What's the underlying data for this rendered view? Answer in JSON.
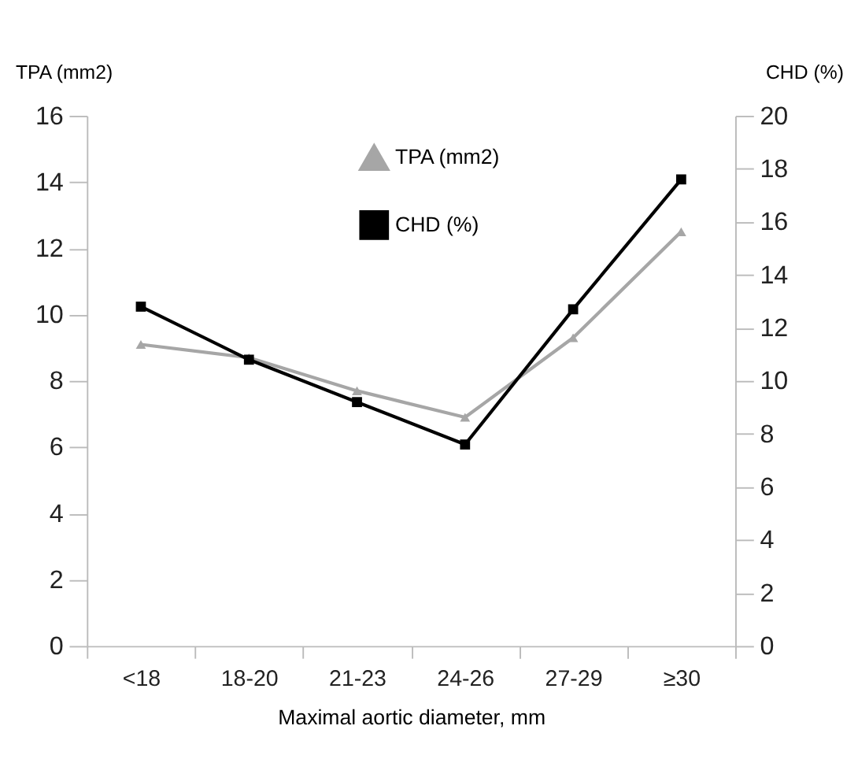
{
  "chart_data": {
    "type": "line",
    "xlabel": "Maximal aortic diameter, mm",
    "ylabel": "TPA (mm2)",
    "y2label": "CHD (%)",
    "categories": [
      "<18",
      "18-20",
      "21-23",
      "24-26",
      "27-29",
      "≥30"
    ],
    "series": [
      {
        "name": "TPA (mm2)",
        "color": "#a6a6a6",
        "marker": "triangle",
        "values": [
          9.1,
          8.7,
          7.7,
          6.9,
          9.3,
          12.5
        ]
      },
      {
        "name": "CHD (%)",
        "color": "#000000",
        "marker": "square",
        "axis": "y2",
        "values": [
          12.8,
          10.8,
          9.2,
          7.6,
          12.7,
          17.6
        ]
      }
    ],
    "ylim": [
      0,
      16
    ],
    "yticks": [
      0,
      2,
      4,
      6,
      8,
      10,
      12,
      14,
      16
    ],
    "y2lim": [
      0,
      20
    ],
    "y2ticks": [
      0,
      2,
      4,
      6,
      8,
      10,
      12,
      14,
      16,
      18,
      20
    ],
    "grid": false,
    "legend": "top",
    "line_style": "solid"
  }
}
